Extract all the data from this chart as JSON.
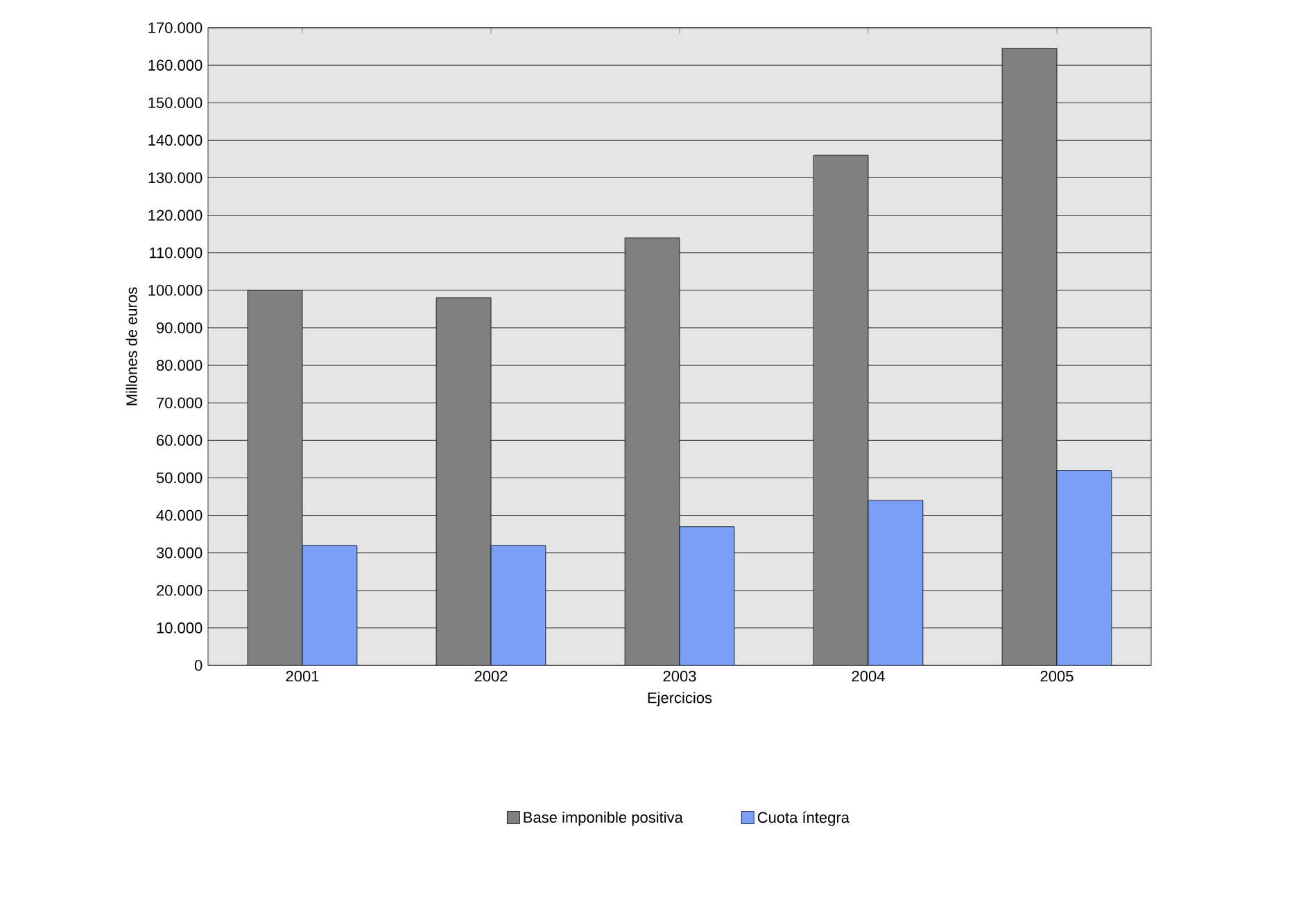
{
  "chart_data": {
    "type": "bar",
    "xlabel": "Ejercicios",
    "ylabel": "Millones de euros",
    "categories": [
      "2001",
      "2002",
      "2003",
      "2004",
      "2005"
    ],
    "series": [
      {
        "name": "Base imponible positiva",
        "color": "#808080",
        "values": [
          100000,
          98000,
          114000,
          136000,
          164500
        ]
      },
      {
        "name": "Cuota íntegra",
        "color": "#7b9ef7",
        "values": [
          32000,
          32000,
          37000,
          44000,
          52000
        ]
      }
    ],
    "ylim": [
      0,
      170000
    ],
    "yticks": [
      0,
      {
        "value": 10000,
        "label": "10.000"
      },
      {
        "value": 20000,
        "label": "20.000"
      },
      {
        "value": 30000,
        "label": "30.000"
      },
      {
        "value": 40000,
        "label": "40.000"
      },
      {
        "value": 50000,
        "label": "50.000"
      },
      {
        "value": 60000,
        "label": "60.000"
      },
      {
        "value": 70000,
        "label": "70.000"
      },
      {
        "value": 80000,
        "label": "80.000"
      },
      {
        "value": 90000,
        "label": "90.000"
      },
      {
        "value": 100000,
        "label": "100.000"
      },
      {
        "value": 110000,
        "label": "110.000"
      },
      {
        "value": 120000,
        "label": "120.000"
      },
      {
        "value": 130000,
        "label": "130.000"
      },
      {
        "value": 140000,
        "label": "140.000"
      },
      {
        "value": 150000,
        "label": "150.000"
      },
      {
        "value": 160000,
        "label": "160.000"
      },
      {
        "value": 170000,
        "label": "170.000"
      }
    ],
    "grid": "y",
    "legend": "bottom"
  }
}
